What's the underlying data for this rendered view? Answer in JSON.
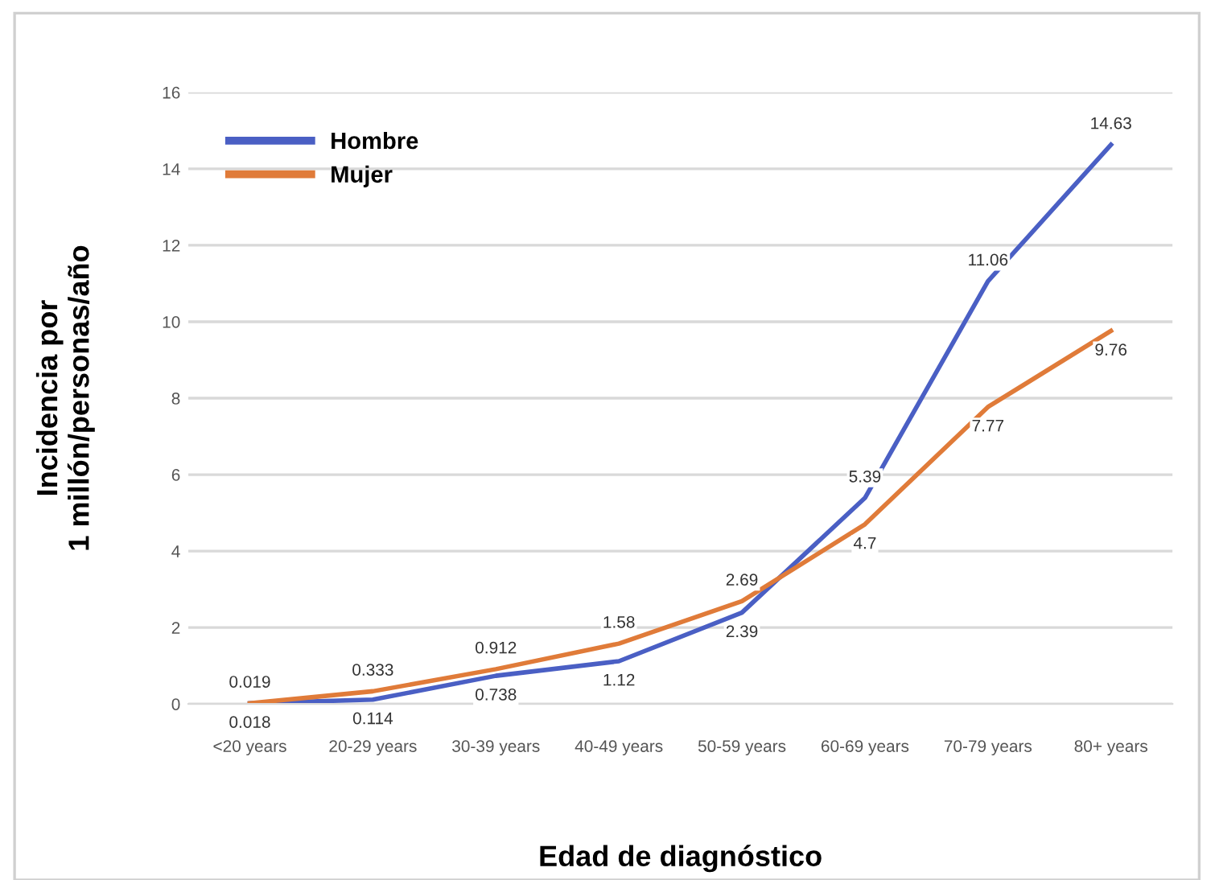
{
  "chart_data": {
    "type": "line",
    "xlabel": "Edad de diagnóstico",
    "ylabel": "Incidencia por\n1 millón/personas/año",
    "categories": [
      "<20 years",
      "20-29 years",
      "30-39 years",
      "40-49 years",
      "50-59 years",
      "60-69 years",
      "70-79 years",
      "80+ years"
    ],
    "series": [
      {
        "name": "Hombre",
        "color": "#4a5fc4",
        "values": [
          0.018,
          0.114,
          0.738,
          1.12,
          2.39,
          5.39,
          11.06,
          14.63
        ]
      },
      {
        "name": "Mujer",
        "color": "#e07b39",
        "values": [
          0.019,
          0.333,
          0.912,
          1.58,
          2.69,
          4.7,
          7.77,
          9.76
        ]
      }
    ],
    "ylim": [
      0,
      16
    ],
    "yticks": [
      0,
      2,
      4,
      6,
      8,
      10,
      12,
      14,
      16
    ],
    "grid": "y",
    "legend": "top left",
    "data_labels": true,
    "marker": "none",
    "line_style": "solid"
  }
}
